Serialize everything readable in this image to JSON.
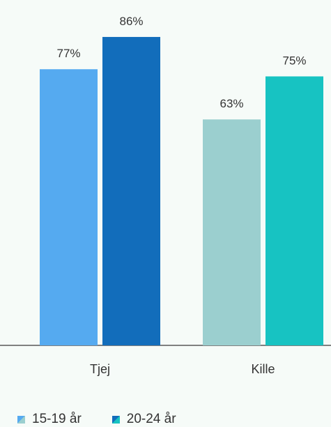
{
  "chart_data": {
    "type": "bar",
    "categories": [
      "Tjej",
      "Kille"
    ],
    "series": [
      {
        "name": "15-19 år",
        "values": [
          77,
          63
        ]
      },
      {
        "name": "20-24 år",
        "values": [
          86,
          75
        ]
      }
    ],
    "value_labels": [
      [
        "77%",
        "86%"
      ],
      [
        "63%",
        "75%"
      ]
    ],
    "ylim": [
      0,
      100
    ],
    "grid": false,
    "legend": "bottom-left",
    "colors": {
      "Tjej": [
        "#55aaf0",
        "#126dbb"
      ],
      "Kille": [
        "#9bcfcf",
        "#17c3c2"
      ]
    },
    "axis_color": "#808080",
    "text_color": "#333333"
  },
  "legend": {
    "items": [
      {
        "label": "15-19 år",
        "colors": [
          "#55aaf0",
          "#9bcfcf"
        ]
      },
      {
        "label": "20-24 år",
        "colors": [
          "#126dbb",
          "#17c3c2"
        ]
      }
    ]
  }
}
